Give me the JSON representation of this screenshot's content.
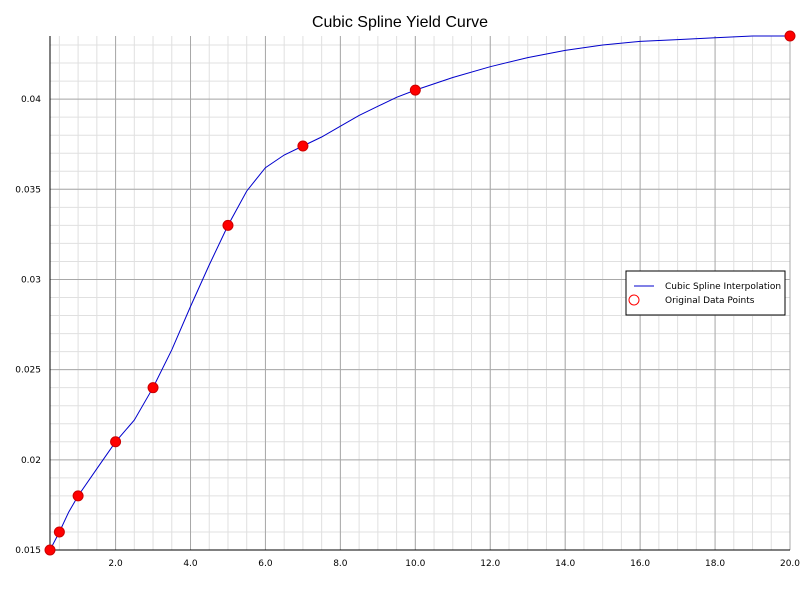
{
  "chart_data": {
    "type": "line",
    "title": "Cubic Spline Yield Curve",
    "xlabel": "",
    "ylabel": "",
    "xlim": [
      0.25,
      20
    ],
    "ylim": [
      0.015,
      0.0435
    ],
    "x_ticks": [
      2,
      4,
      6,
      8,
      10,
      12,
      14,
      16,
      18,
      20
    ],
    "x_tick_labels": [
      "2.0",
      "4.0",
      "6.0",
      "8.0",
      "10.0",
      "12.0",
      "14.0",
      "16.0",
      "18.0",
      "20.0"
    ],
    "y_ticks": [
      0.015,
      0.02,
      0.025,
      0.03,
      0.035,
      0.04
    ],
    "y_tick_labels": [
      "0.015",
      "0.02",
      "0.025",
      "0.03",
      "0.035",
      "0.04"
    ],
    "grid": true,
    "legend_position": "right",
    "series": [
      {
        "name": "Cubic Spline Interpolation",
        "kind": "line",
        "color": "#0000cc",
        "x": [
          0.25,
          0.5,
          0.75,
          1.0,
          1.5,
          2.0,
          2.5,
          3.0,
          3.5,
          4.0,
          4.5,
          5.0,
          5.5,
          6.0,
          6.5,
          7.0,
          7.5,
          8.0,
          8.5,
          9.0,
          9.5,
          10.0,
          11.0,
          12.0,
          13.0,
          14.0,
          15.0,
          16.0,
          17.0,
          18.0,
          19.0,
          20.0
        ],
        "y": [
          0.015,
          0.016,
          0.0171,
          0.018,
          0.0195,
          0.021,
          0.0222,
          0.024,
          0.0261,
          0.0285,
          0.0308,
          0.033,
          0.0349,
          0.0362,
          0.0369,
          0.0374,
          0.0379,
          0.0385,
          0.0391,
          0.0396,
          0.0401,
          0.0405,
          0.0412,
          0.0418,
          0.0423,
          0.0427,
          0.043,
          0.0432,
          0.0433,
          0.0434,
          0.0435,
          0.0435
        ]
      },
      {
        "name": "Original Data Points",
        "kind": "scatter",
        "color": "#ff0000",
        "x": [
          0.25,
          0.5,
          1.0,
          2.0,
          3.0,
          5.0,
          7.0,
          10.0,
          20.0
        ],
        "y": [
          0.015,
          0.016,
          0.018,
          0.021,
          0.024,
          0.033,
          0.0374,
          0.0405,
          0.0435
        ]
      }
    ]
  }
}
